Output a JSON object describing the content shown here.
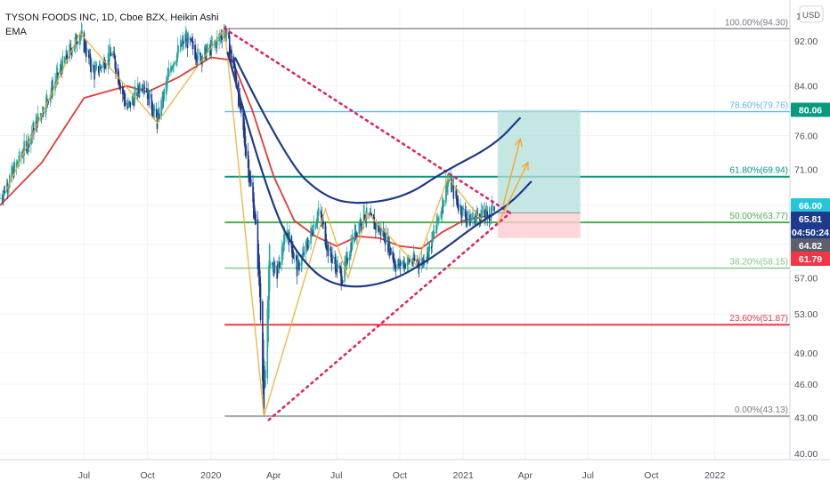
{
  "legend": {
    "title": "TYSON FOODS INC, 1D, Cboe BZX, Heikin Ashi",
    "indicator": "EMA"
  },
  "currency_button": "USD",
  "scale_top_label": "1",
  "chart_data": {
    "type": "candlestick",
    "symbol": "TYSON FOODS INC",
    "interval": "1D",
    "exchange": "Cboe BZX",
    "chart_style": "Heikin Ashi",
    "y_scale": "log",
    "ylim": [
      39.5,
      98.5
    ],
    "xlim": [
      "2019-03-01",
      "2022-04-20"
    ],
    "y_ticks": [
      40.0,
      43.0,
      46.0,
      49.0,
      53.0,
      57.0,
      61.0,
      66.0,
      71.0,
      76.0,
      84.0,
      92.0
    ],
    "y_tick_labels": [
      "40.00",
      "43.00",
      "46.00",
      "49.00",
      "53.00",
      "57.00",
      "61.00",
      "66.00",
      "71.00",
      "76.00",
      "84.00",
      "92.00"
    ],
    "x_ticks": [
      {
        "date": "2019-07-01",
        "label": "Jul"
      },
      {
        "date": "2019-10-01",
        "label": "Oct"
      },
      {
        "date": "2020-01-01",
        "label": "2020"
      },
      {
        "date": "2020-04-01",
        "label": "Apr"
      },
      {
        "date": "2020-07-01",
        "label": "Jul"
      },
      {
        "date": "2020-10-01",
        "label": "Oct"
      },
      {
        "date": "2021-01-01",
        "label": "2021"
      },
      {
        "date": "2021-04-01",
        "label": "Apr"
      },
      {
        "date": "2021-07-01",
        "label": "Jul"
      },
      {
        "date": "2021-10-01",
        "label": "Oct"
      },
      {
        "date": "2022-01-01",
        "label": "2022"
      }
    ],
    "price_path": [
      [
        "2019-03-01",
        67.0
      ],
      [
        "2019-04-01",
        73.0
      ],
      [
        "2019-05-01",
        80.0
      ],
      [
        "2019-06-01",
        88.0
      ],
      [
        "2019-06-25",
        93.5
      ],
      [
        "2019-07-15",
        86.0
      ],
      [
        "2019-08-10",
        90.0
      ],
      [
        "2019-09-01",
        80.0
      ],
      [
        "2019-09-25",
        85.0
      ],
      [
        "2019-10-15",
        78.0
      ],
      [
        "2019-11-05",
        88.0
      ],
      [
        "2019-11-25",
        92.5
      ],
      [
        "2019-12-15",
        89.0
      ],
      [
        "2020-01-05",
        91.0
      ],
      [
        "2020-01-21",
        94.3
      ],
      [
        "2020-02-05",
        86.0
      ],
      [
        "2020-02-20",
        74.0
      ],
      [
        "2020-03-05",
        64.0
      ],
      [
        "2020-03-12",
        55.0
      ],
      [
        "2020-03-18",
        43.13
      ],
      [
        "2020-03-26",
        60.0
      ],
      [
        "2020-04-05",
        57.0
      ],
      [
        "2020-04-20",
        63.0
      ],
      [
        "2020-05-05",
        58.0
      ],
      [
        "2020-05-20",
        61.0
      ],
      [
        "2020-06-05",
        65.5
      ],
      [
        "2020-06-20",
        60.0
      ],
      [
        "2020-07-10",
        57.0
      ],
      [
        "2020-07-25",
        62.0
      ],
      [
        "2020-08-10",
        65.0
      ],
      [
        "2020-08-25",
        63.5
      ],
      [
        "2020-09-10",
        62.0
      ],
      [
        "2020-09-25",
        58.5
      ],
      [
        "2020-10-15",
        59.0
      ],
      [
        "2020-11-01",
        58.8
      ],
      [
        "2020-11-15",
        61.0
      ],
      [
        "2020-12-01",
        66.0
      ],
      [
        "2020-12-10",
        69.8
      ],
      [
        "2020-12-25",
        66.0
      ],
      [
        "2021-01-10",
        64.0
      ],
      [
        "2021-01-25",
        65.0
      ],
      [
        "2021-02-05",
        64.5
      ],
      [
        "2021-02-15",
        65.8
      ]
    ],
    "ema_path": [
      [
        "2019-03-01",
        66.0
      ],
      [
        "2019-05-01",
        72.0
      ],
      [
        "2019-07-01",
        82.0
      ],
      [
        "2019-09-01",
        84.0
      ],
      [
        "2019-10-01",
        83.0
      ],
      [
        "2019-11-15",
        85.5
      ],
      [
        "2020-01-01",
        89.0
      ],
      [
        "2020-02-01",
        88.5
      ],
      [
        "2020-03-01",
        80.0
      ],
      [
        "2020-04-01",
        70.0
      ],
      [
        "2020-05-01",
        64.0
      ],
      [
        "2020-06-01",
        62.0
      ],
      [
        "2020-07-01",
        60.8
      ],
      [
        "2020-08-01",
        62.0
      ],
      [
        "2020-09-01",
        61.8
      ],
      [
        "2020-10-01",
        60.8
      ],
      [
        "2020-11-01",
        60.5
      ],
      [
        "2020-12-01",
        62.5
      ],
      [
        "2021-01-01",
        64.0
      ],
      [
        "2021-02-15",
        64.8
      ]
    ],
    "annotations": {
      "fibonacci": [
        {
          "level": "100.00%",
          "price": 94.3,
          "label": "100.00%(94.30)",
          "color": "#787b86"
        },
        {
          "level": "78.60%",
          "price": 79.76,
          "label": "78.60%(79.76)",
          "color": "#64b5f6"
        },
        {
          "level": "61.80%",
          "price": 69.94,
          "label": "61.80%(69.94)",
          "color": "#089981"
        },
        {
          "level": "50.00%",
          "price": 63.77,
          "label": "50.00%(63.77)",
          "color": "#4caf50"
        },
        {
          "level": "38.20%",
          "price": 58.15,
          "label": "38.20%(58.15)",
          "color": "#81c784"
        },
        {
          "level": "23.60%",
          "price": 51.87,
          "label": "23.60%(51.87)",
          "color": "#f23645"
        },
        {
          "level": "0.00%",
          "price": 43.13,
          "label": "0.00%(43.13)",
          "color": "#787b86"
        }
      ],
      "fib_start_date": "2020-01-21",
      "fib_end_date": "2022-04-20",
      "trendline_dotted": [
        {
          "from": [
            "2020-01-21",
            94.3
          ],
          "to": [
            "2021-03-10",
            65.0
          ]
        },
        {
          "from": [
            "2020-03-25",
            42.8
          ],
          "to": [
            "2021-03-10",
            65.0
          ]
        }
      ],
      "long_position": {
        "from_date": "2021-02-20",
        "to_date": "2021-06-20",
        "entry": 65.0,
        "target": 80.06,
        "stop": 61.79,
        "profit_color": "#b2dfdb",
        "loss_color": "#ffcdd2"
      },
      "forecast_arrow": {
        "from": [
          "2021-02-28",
          66.0
        ],
        "to": [
          "2021-03-25",
          75.5
        ]
      },
      "projection_arrow": {
        "from": [
          "2021-02-20",
          63.5
        ],
        "to": [
          "2021-04-05",
          72.0
        ]
      }
    },
    "price_tags": [
      {
        "price": 80.06,
        "label": "80.06",
        "bg": "#089981"
      },
      {
        "price": 66.0,
        "label": "66.00",
        "bg": "#26c6da"
      },
      {
        "price": 65.81,
        "label": "65.81",
        "bg": "#1e3a8a"
      },
      {
        "price": 62.9,
        "label": "04:50:24",
        "bg": "#1e3a8a"
      },
      {
        "price": 64.82,
        "label": "64.82",
        "bg": "#5d606b"
      },
      {
        "price": 61.79,
        "label": "61.79",
        "bg": "#f23645"
      }
    ]
  }
}
